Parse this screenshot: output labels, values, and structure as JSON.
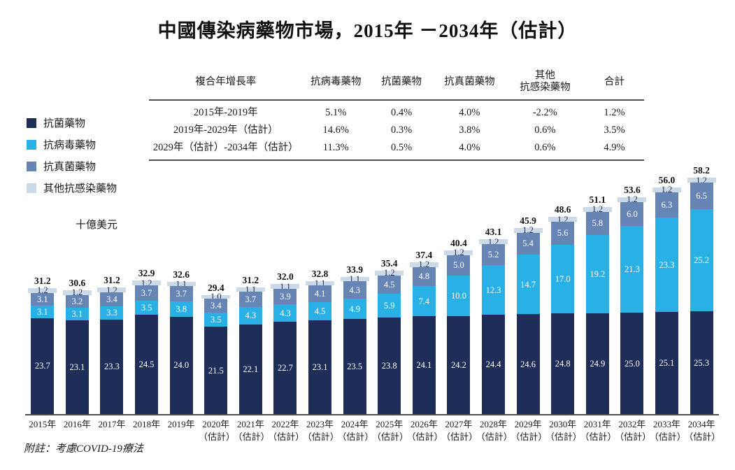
{
  "title": "中國傳染病藥物市場，2015年 －2034年（估計）",
  "unit_label": "十億美元",
  "footnote": "附註：考慮COVID-19療法",
  "legend": {
    "items": [
      {
        "label": "抗菌藥物",
        "color": "#1f2e58"
      },
      {
        "label": "抗病毒藥物",
        "color": "#29b0e4"
      },
      {
        "label": "抗真菌藥物",
        "color": "#6684b4"
      },
      {
        "label": "其他抗感染藥物",
        "color": "#ccd9e6"
      }
    ]
  },
  "chart_data": [
    {
      "type": "bar",
      "stacked": true,
      "title": "中國傳染病藥物市場，2015年 －2034年（估計）",
      "ylabel": "十億美元",
      "grid": false,
      "legend_position": "left",
      "categories": [
        "2015年",
        "2016年",
        "2017年",
        "2018年",
        "2019年",
        "2020年",
        "2021年",
        "2022年",
        "2023年",
        "2024年",
        "2025年",
        "2026年",
        "2027年",
        "2028年",
        "2029年",
        "2030年",
        "2031年",
        "2032年",
        "2033年",
        "2034年"
      ],
      "estimated": [
        false,
        false,
        false,
        false,
        false,
        true,
        true,
        true,
        true,
        true,
        true,
        true,
        true,
        true,
        true,
        true,
        true,
        true,
        true,
        true
      ],
      "estimate_suffix": "（估計）",
      "series": [
        {
          "name": "抗菌藥物",
          "color": "#1f2e58",
          "values": [
            23.7,
            23.1,
            23.3,
            24.5,
            24.0,
            21.5,
            22.1,
            22.7,
            23.1,
            23.5,
            23.8,
            24.1,
            24.2,
            24.4,
            24.6,
            24.8,
            24.9,
            25.0,
            25.1,
            25.3
          ]
        },
        {
          "name": "抗病毒藥物",
          "color": "#29b0e4",
          "values": [
            3.1,
            3.1,
            3.3,
            3.5,
            3.8,
            3.5,
            4.3,
            4.3,
            4.5,
            4.9,
            5.9,
            7.4,
            10.0,
            12.3,
            14.7,
            17.0,
            19.2,
            21.3,
            23.3,
            25.2
          ]
        },
        {
          "name": "抗真菌藥物",
          "color": "#6684b4",
          "values": [
            3.1,
            3.2,
            3.4,
            3.7,
            3.7,
            3.4,
            3.7,
            3.9,
            4.1,
            4.3,
            4.5,
            4.8,
            5.0,
            5.2,
            5.4,
            5.6,
            5.8,
            6.0,
            6.3,
            6.5
          ]
        },
        {
          "name": "其他抗感染藥物",
          "color": "#ccd9e6",
          "values": [
            1.2,
            1.2,
            1.2,
            1.2,
            1.1,
            1.0,
            1.1,
            1.1,
            1.1,
            1.1,
            1.2,
            1.2,
            1.2,
            1.2,
            1.2,
            1.2,
            1.2,
            1.2,
            1.2,
            1.2
          ]
        }
      ],
      "totals": [
        31.2,
        30.6,
        31.2,
        32.9,
        32.6,
        29.4,
        31.2,
        32.0,
        32.8,
        33.9,
        35.4,
        37.4,
        40.4,
        43.1,
        45.9,
        48.6,
        51.1,
        53.6,
        56.0,
        58.2
      ]
    },
    {
      "type": "table",
      "columns": [
        "複合年增長率",
        "抗病毒藥物",
        "抗菌藥物",
        "抗真菌藥物",
        "其他\n抗感染藥物",
        "合計"
      ],
      "rows": [
        {
          "label": "2015年-2019年",
          "values": [
            "5.1%",
            "0.4%",
            "4.0%",
            "-2.2%",
            "1.2%"
          ]
        },
        {
          "label": "2019年-2029年（估計）",
          "values": [
            "14.6%",
            "0.3%",
            "3.8%",
            "0.6%",
            "3.5%"
          ]
        },
        {
          "label": "2029年（估計）-2034年（估計）",
          "values": [
            "11.3%",
            "0.5%",
            "4.0%",
            "0.6%",
            "4.9%"
          ]
        }
      ]
    }
  ]
}
